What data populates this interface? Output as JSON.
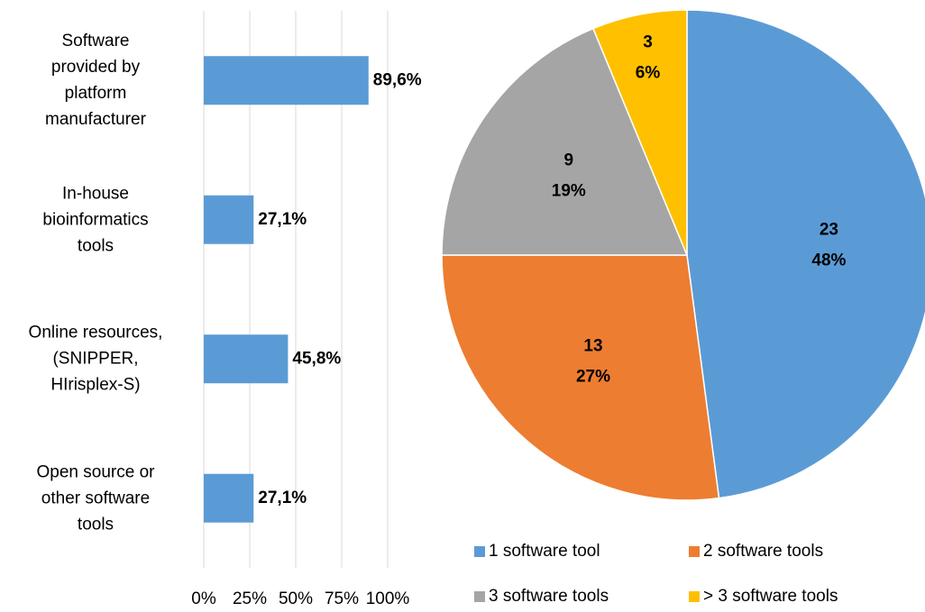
{
  "chart_data": [
    {
      "type": "bar",
      "orientation": "horizontal",
      "categories": [
        "Software\nprovided by\nplatform\nmanufacturer",
        "In-house\nbioinformatics\ntools",
        "Online resources,\n(SNIPPER,\nHIrisplex-S)",
        "Open source or\nother software\ntools"
      ],
      "values": [
        89.6,
        27.1,
        45.8,
        27.1
      ],
      "value_labels": [
        "89,6%",
        "27,1%",
        "45,8%",
        "27,1%"
      ],
      "color": "#5b9bd5",
      "xlim": [
        0,
        100
      ],
      "xticks": [
        {
          "value": 0,
          "label": "0%"
        },
        {
          "value": 25,
          "label": "25%"
        },
        {
          "value": 50,
          "label": "50%"
        },
        {
          "value": 75,
          "label": "75%"
        },
        {
          "value": 100,
          "label": "100%"
        }
      ],
      "grid": true
    },
    {
      "type": "pie",
      "categories": [
        "1 software tool",
        "2 software tools",
        "3 software tools",
        "> 3 software tools"
      ],
      "values": [
        23,
        13,
        9,
        3
      ],
      "percentages": [
        48,
        27,
        19,
        6
      ],
      "percentage_labels": [
        "48%",
        "27%",
        "19%",
        "6%"
      ],
      "colors": [
        "#5b9bd5",
        "#ed7d31",
        "#a5a5a5",
        "#ffc000"
      ],
      "legend": "bottom"
    }
  ]
}
